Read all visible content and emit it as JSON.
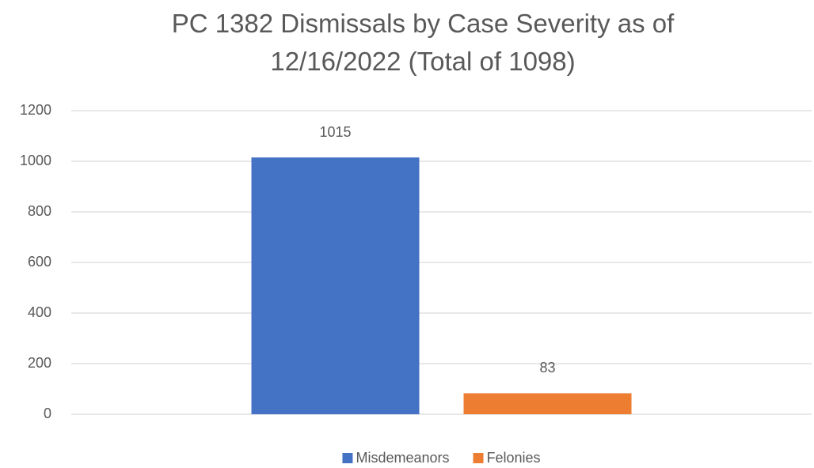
{
  "chart_data": {
    "type": "bar",
    "title": "PC 1382 Dismissals by Case Severity as of 12/16/2022 (Total of 1098)",
    "categories": [
      null
    ],
    "series": [
      {
        "name": "Misdemeanors",
        "color": "#4472c4",
        "values": [
          1015
        ]
      },
      {
        "name": "Felonies",
        "color": "#ed7d31",
        "values": [
          83
        ]
      }
    ],
    "ylim": [
      0,
      1200
    ],
    "yticks": [
      0,
      200,
      400,
      600,
      800,
      1000,
      1200
    ],
    "grid": true,
    "data_labels": true,
    "legend": "bottom"
  }
}
